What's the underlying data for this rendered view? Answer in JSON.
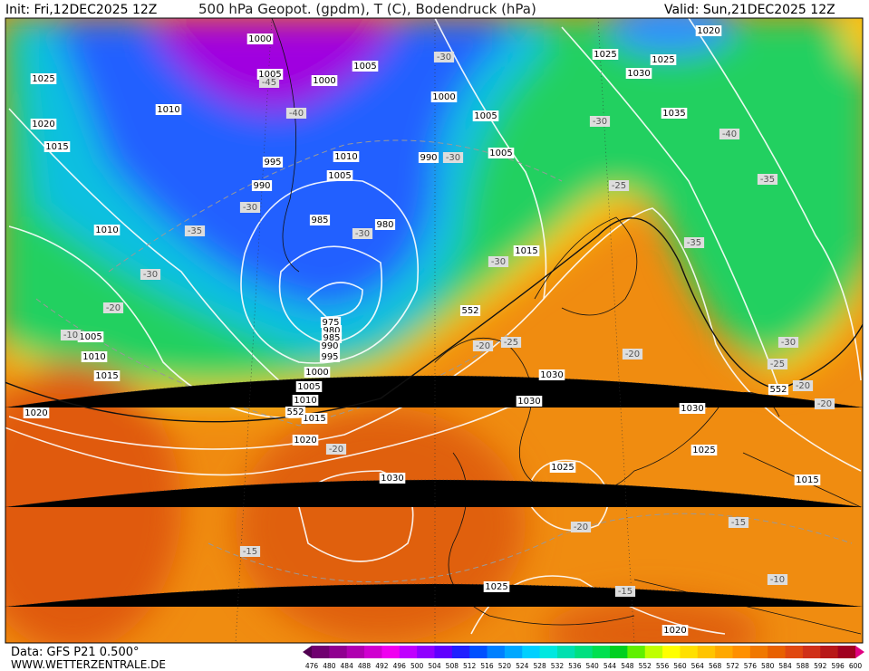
{
  "header": {
    "init": "Init: Fri,12DEC2025 12Z",
    "title": "500 hPa Geopot. (gpdm), T (C), Bodendruck (hPa)",
    "valid": "Valid: Sun,21DEC2025 12Z"
  },
  "isobar_labels": [
    "1000",
    "1005",
    "1000",
    "1005",
    "1025",
    "1020",
    "1015",
    "1010",
    "995",
    "990",
    "1010",
    "1005",
    "985",
    "990",
    "980",
    "1000",
    "1005",
    "1005",
    "1015",
    "1010",
    "1005",
    "1010",
    "1015",
    "1020",
    "975",
    "980",
    "985",
    "990",
    "995",
    "1000",
    "1005",
    "1010",
    "1015",
    "1020",
    "1030",
    "1030",
    "1030",
    "1025",
    "1025",
    "1020",
    "1015",
    "1025",
    "1030",
    "1020",
    "1025",
    "1025",
    "1030",
    "1035"
  ],
  "temperature_labels": [
    "-45",
    "-40",
    "-30",
    "-35",
    "-30",
    "-20",
    "-10",
    "-30",
    "-30",
    "-30",
    "-30",
    "-25",
    "-30",
    "-25",
    "-20",
    "-20",
    "-40",
    "-35",
    "-35",
    "-30",
    "-25",
    "-20",
    "-20",
    "-20",
    "-15",
    "-20",
    "-15",
    "-15",
    "-10"
  ],
  "geopotential_labels": [
    "552",
    "552",
    "552"
  ],
  "footer": {
    "data": "Data: GFS P21 0.500°",
    "site": "WWW.WETTERZENTRALE.DE"
  },
  "colorbar_labels": [
    "476",
    "480",
    "484",
    "488",
    "492",
    "496",
    "500",
    "504",
    "508",
    "512",
    "516",
    "520",
    "524",
    "528",
    "532",
    "536",
    "540",
    "544",
    "548",
    "552",
    "556",
    "560",
    "564",
    "568",
    "572",
    "576",
    "580",
    "584",
    "588",
    "592",
    "596",
    "600"
  ]
}
